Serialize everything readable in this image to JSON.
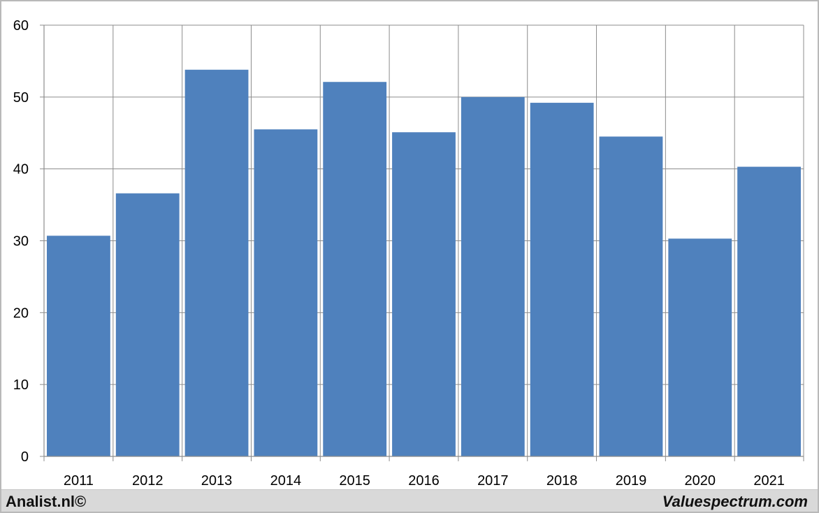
{
  "chart_data": {
    "type": "bar",
    "title": "",
    "xlabel": "",
    "ylabel": "",
    "categories": [
      "2011",
      "2012",
      "2013",
      "2014",
      "2015",
      "2016",
      "2017",
      "2018",
      "2019",
      "2020",
      "2021"
    ],
    "values": [
      30.7,
      36.6,
      53.8,
      45.5,
      52.1,
      45.1,
      50.0,
      49.2,
      44.5,
      30.3,
      40.3
    ],
    "ylim": [
      0,
      60
    ],
    "y_ticks": [
      0,
      10,
      20,
      30,
      40,
      50,
      60
    ],
    "grid": true,
    "legend": "none",
    "bar_color": "#4f81bd"
  },
  "footer": {
    "left_text": "Analist.nl©",
    "right_text": "Valuespectrum.com"
  }
}
